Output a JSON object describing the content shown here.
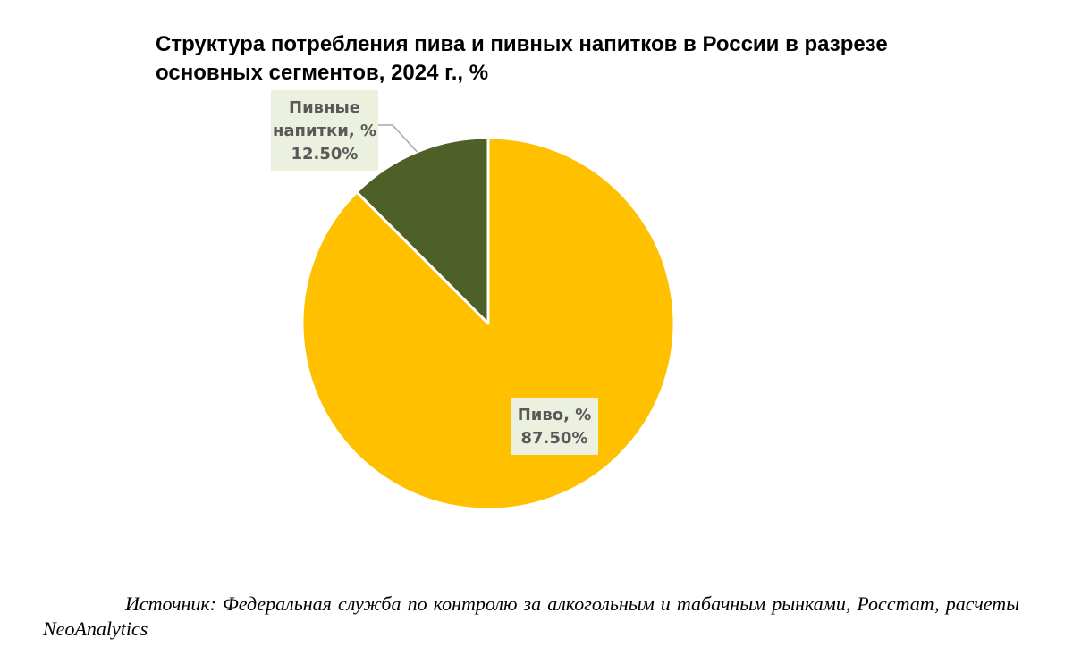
{
  "chart_data": {
    "type": "pie",
    "title": "Структура потребления пива и пивных напитков в России в разрезе основных сегментов, 2024 г., %",
    "categories": [
      "Пиво, %",
      "Пивные напитки, %"
    ],
    "values": [
      87.5,
      12.5
    ],
    "data_labels": [
      "87.50%",
      "12.50%"
    ],
    "colors": [
      "#FFC000",
      "#4E5F27"
    ],
    "label_background": "#EBF1DE",
    "legend": "none",
    "start_angle_deg": 0,
    "direction": "clockwise"
  },
  "source": "Источник: Федеральная служба по контролю за алкогольным и табачным рынками, Росстат, расчеты NeoAnalytics"
}
